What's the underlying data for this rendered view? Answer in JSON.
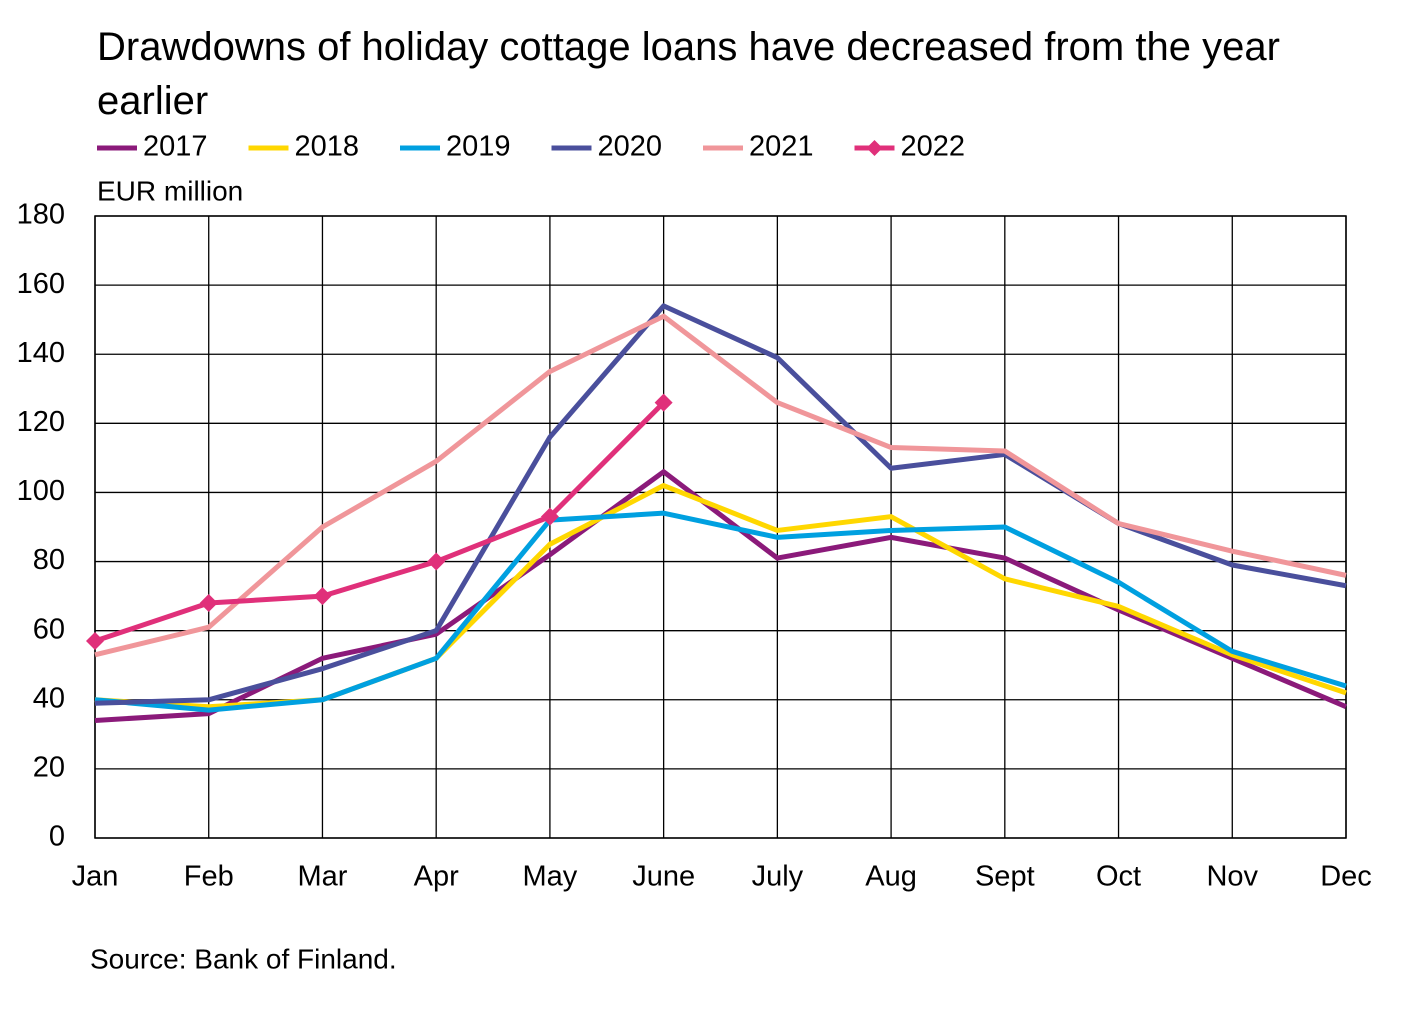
{
  "chart_data": {
    "type": "line",
    "title": "Drawdowns of holiday cottage loans have decreased from the year earlier",
    "ylabel": "EUR million",
    "note": "Source: Bank of Finland.",
    "categories": [
      "Jan",
      "Feb",
      "Mar",
      "Apr",
      "May",
      "June",
      "July",
      "Aug",
      "Sept",
      "Oct",
      "Nov",
      "Dec"
    ],
    "series": [
      {
        "name": "2017",
        "color": "#8b1a7a",
        "values": [
          34,
          36,
          52,
          59,
          82,
          106,
          81,
          87,
          81,
          66,
          52,
          38
        ]
      },
      {
        "name": "2018",
        "color": "#ffd700",
        "values": [
          40,
          38,
          40,
          52,
          85,
          102,
          89,
          93,
          75,
          67,
          53,
          42
        ]
      },
      {
        "name": "2019",
        "color": "#00a0e0",
        "values": [
          40,
          37,
          40,
          52,
          92,
          94,
          87,
          89,
          90,
          74,
          54,
          44
        ]
      },
      {
        "name": "2020",
        "color": "#4a4f9c",
        "values": [
          39,
          40,
          49,
          60,
          116,
          154,
          139,
          107,
          111,
          91,
          79,
          73
        ]
      },
      {
        "name": "2021",
        "color": "#f0969a",
        "values": [
          53,
          61,
          90,
          109,
          135,
          151,
          126,
          113,
          112,
          91,
          83,
          76
        ]
      },
      {
        "name": "2022",
        "color": "#e0307a",
        "marker": "diamond",
        "values": [
          57,
          68,
          70,
          80,
          93,
          126,
          null,
          null,
          null,
          null,
          null,
          null
        ]
      }
    ],
    "ylim": [
      0,
      180
    ],
    "yticks": [
      0,
      20,
      40,
      60,
      80,
      100,
      120,
      140,
      160,
      180
    ],
    "grid": true,
    "legend": "top"
  }
}
